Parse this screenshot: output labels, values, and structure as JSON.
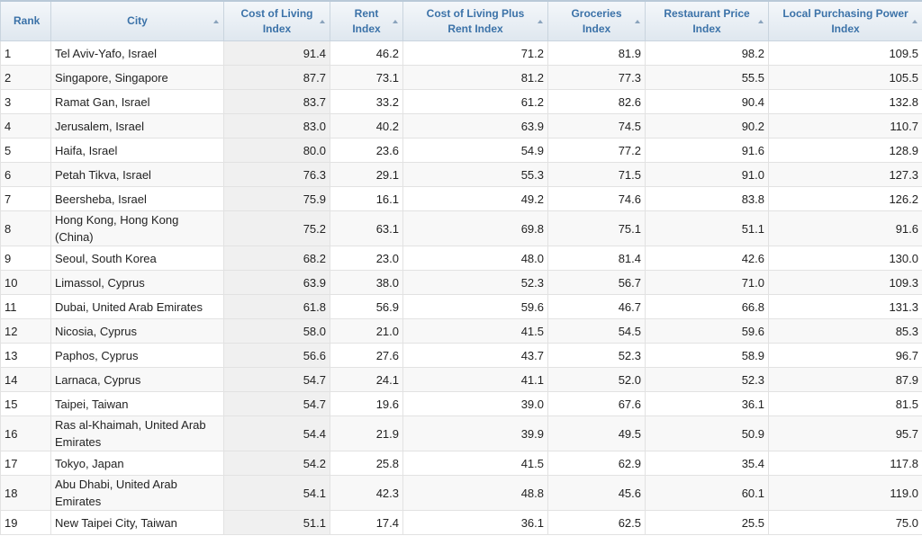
{
  "table": {
    "headers": [
      "Rank",
      "City",
      "Cost of Living Index",
      "Rent Index",
      "Cost of Living Plus Rent Index",
      "Groceries Index",
      "Restaurant Price Index",
      "Local Purchasing Power Index"
    ],
    "rows": [
      [
        "1",
        "Tel Aviv-Yafo, Israel",
        "91.4",
        "46.2",
        "71.2",
        "81.9",
        "98.2",
        "109.5"
      ],
      [
        "2",
        "Singapore, Singapore",
        "87.7",
        "73.1",
        "81.2",
        "77.3",
        "55.5",
        "105.5"
      ],
      [
        "3",
        "Ramat Gan, Israel",
        "83.7",
        "33.2",
        "61.2",
        "82.6",
        "90.4",
        "132.8"
      ],
      [
        "4",
        "Jerusalem, Israel",
        "83.0",
        "40.2",
        "63.9",
        "74.5",
        "90.2",
        "110.7"
      ],
      [
        "5",
        "Haifa, Israel",
        "80.0",
        "23.6",
        "54.9",
        "77.2",
        "91.6",
        "128.9"
      ],
      [
        "6",
        "Petah Tikva, Israel",
        "76.3",
        "29.1",
        "55.3",
        "71.5",
        "91.0",
        "127.3"
      ],
      [
        "7",
        "Beersheba, Israel",
        "75.9",
        "16.1",
        "49.2",
        "74.6",
        "83.8",
        "126.2"
      ],
      [
        "8",
        "Hong Kong, Hong Kong (China)",
        "75.2",
        "63.1",
        "69.8",
        "75.1",
        "51.1",
        "91.6"
      ],
      [
        "9",
        "Seoul, South Korea",
        "68.2",
        "23.0",
        "48.0",
        "81.4",
        "42.6",
        "130.0"
      ],
      [
        "10",
        "Limassol, Cyprus",
        "63.9",
        "38.0",
        "52.3",
        "56.7",
        "71.0",
        "109.3"
      ],
      [
        "11",
        "Dubai, United Arab Emirates",
        "61.8",
        "56.9",
        "59.6",
        "46.7",
        "66.8",
        "131.3"
      ],
      [
        "12",
        "Nicosia, Cyprus",
        "58.0",
        "21.0",
        "41.5",
        "54.5",
        "59.6",
        "85.3"
      ],
      [
        "13",
        "Paphos, Cyprus",
        "56.6",
        "27.6",
        "43.7",
        "52.3",
        "58.9",
        "96.7"
      ],
      [
        "14",
        "Larnaca, Cyprus",
        "54.7",
        "24.1",
        "41.1",
        "52.0",
        "52.3",
        "87.9"
      ],
      [
        "15",
        "Taipei, Taiwan",
        "54.7",
        "19.6",
        "39.0",
        "67.6",
        "36.1",
        "81.5"
      ],
      [
        "16",
        "Ras al-Khaimah, United Arab Emirates",
        "54.4",
        "21.9",
        "39.9",
        "49.5",
        "50.9",
        "95.7"
      ],
      [
        "17",
        "Tokyo, Japan",
        "54.2",
        "25.8",
        "41.5",
        "62.9",
        "35.4",
        "117.8"
      ],
      [
        "18",
        "Abu Dhabi, United Arab Emirates",
        "54.1",
        "42.3",
        "48.8",
        "45.6",
        "60.1",
        "119.0"
      ],
      [
        "19",
        "New Taipei City, Taiwan",
        "51.1",
        "17.4",
        "36.1",
        "62.5",
        "25.5",
        "75.0"
      ]
    ]
  }
}
